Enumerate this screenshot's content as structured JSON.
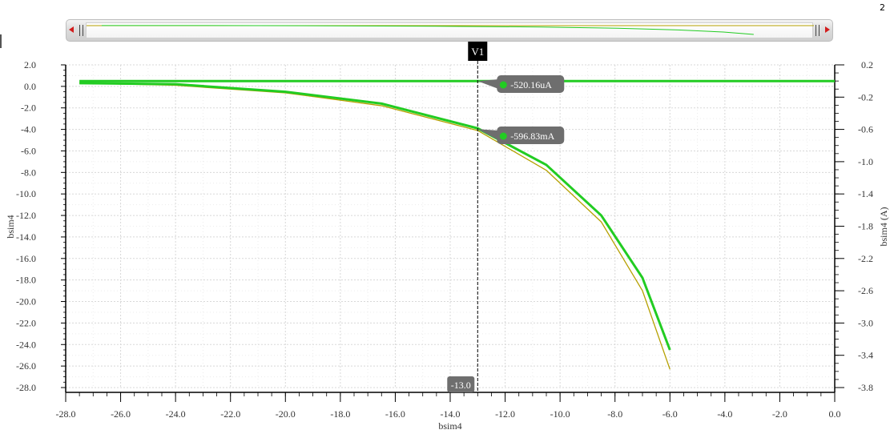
{
  "page_number": "2",
  "colors": {
    "series_main": "#22cc22",
    "series_secondary": "#b5a000",
    "grid": "#d8d8d8",
    "cursor": "#000000",
    "badge_bg": "#6e6e6e",
    "badge_text": "#ffffff"
  },
  "chart_data": {
    "type": "line",
    "title": "",
    "xlabel": "bsim4",
    "ylabel": "bsim4",
    "y2label": "bsim4 (A)",
    "xlim": [
      -28.0,
      0.0
    ],
    "ylim": [
      -28.0,
      2.0
    ],
    "y2lim": [
      -3.8,
      0.2
    ],
    "x_ticks": [
      "-28.0",
      "-26.0",
      "-24.0",
      "-22.0",
      "-20.0",
      "-18.0",
      "-16.0",
      "-14.0",
      "-12.0",
      "-10.0",
      "-8.0",
      "-6.0",
      "-4.0",
      "-2.0",
      "0.0"
    ],
    "y_ticks": [
      "2.0",
      "0.0",
      "-2.0",
      "-4.0",
      "-6.0",
      "-8.0",
      "-10.0",
      "-12.0",
      "-14.0",
      "-16.0",
      "-18.0",
      "-20.0",
      "-22.0",
      "-24.0",
      "-26.0",
      "-28.0"
    ],
    "y2_ticks": [
      "0.2",
      "-0.2",
      "-0.6",
      "-1.0",
      "-1.4",
      "-1.8",
      "-2.2",
      "-2.6",
      "-3.0",
      "-3.4",
      "-3.8"
    ],
    "grid": true,
    "series": [
      {
        "axis": "right",
        "color": "#22cc22",
        "x": [
          -27.5,
          -26,
          -24,
          -22,
          -20,
          -18,
          -16,
          -14,
          -12,
          -10,
          -8,
          -6,
          -4,
          -2,
          0
        ],
        "y": [
          -0.0005,
          -0.0005,
          -0.0005,
          -0.0005,
          -0.0005,
          -0.0005,
          -0.0005,
          -0.0005,
          -0.0005,
          -0.0005,
          -0.0005,
          -0.0005,
          -0.0005,
          -0.0005,
          -0.0005
        ]
      },
      {
        "axis": "left",
        "color": "#22cc22",
        "x": [
          -27.5,
          -24,
          -20,
          -16.5,
          -13,
          -10.5,
          -8.5,
          -7,
          -6
        ],
        "y": [
          0.3,
          0.2,
          -0.5,
          -1.6,
          -3.9,
          -7.3,
          -12.0,
          -17.8,
          -24.5
        ]
      },
      {
        "axis": "left",
        "color": "#b5a000",
        "x": [
          -27.5,
          -24,
          -20,
          -16.5,
          -13,
          -10.5,
          -8.5,
          -7,
          -6
        ],
        "y": [
          0.3,
          0.1,
          -0.6,
          -1.8,
          -4.1,
          -7.8,
          -12.6,
          -19.0,
          -26.3
        ]
      }
    ],
    "cursor": {
      "label": "V1",
      "x": -13.0,
      "x_readout": "-13.0",
      "markers": [
        {
          "axis": "right",
          "y": -0.00052,
          "readout": "-520.16uA"
        },
        {
          "axis": "right",
          "y": -0.59683,
          "readout": "-596.83mA"
        }
      ]
    }
  }
}
